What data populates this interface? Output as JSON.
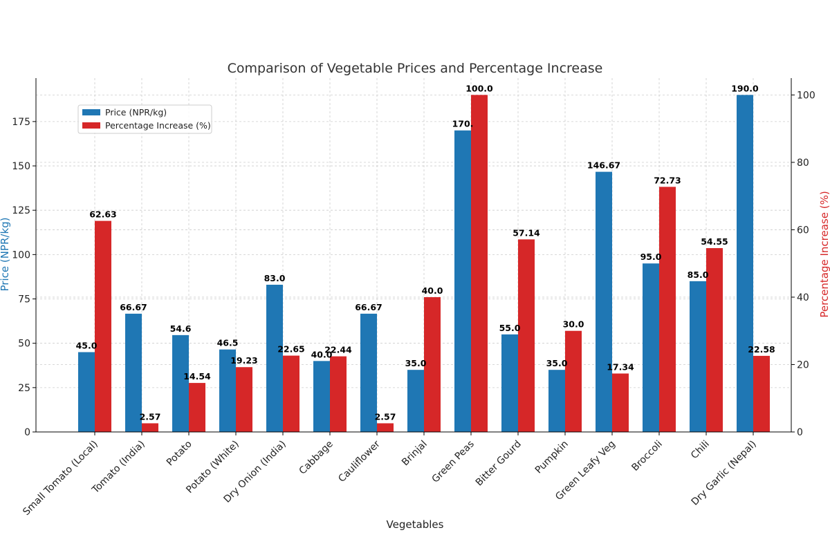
{
  "chart_data": {
    "type": "bar",
    "title": "Comparison of Vegetable Prices and Percentage Increase",
    "xlabel": "Vegetables",
    "ylabel_left": "Price (NPR/kg)",
    "ylabel_right": "Percentage Increase (%)",
    "ylim_left": [
      0,
      199.5
    ],
    "ylim_right": [
      0,
      105
    ],
    "yticks_left": [
      0,
      25,
      50,
      75,
      100,
      125,
      150,
      175
    ],
    "yticks_right": [
      0,
      20,
      40,
      60,
      80,
      100
    ],
    "grid": true,
    "legend_position": "upper-left",
    "colors": {
      "price": "#1f77b4",
      "pct": "#d62728",
      "left_axis": "#1f77b4",
      "right_axis": "#d62728"
    },
    "categories": [
      "Small Tomato (Local)",
      "Tomato (India)",
      "Potato",
      "Potato (White)",
      "Dry Onion (India)",
      "Cabbage",
      "Cauliflower",
      "Brinjal",
      "Green Peas",
      "Bitter Gourd",
      "Pumpkin",
      "Green Leafy Veg",
      "Broccoli",
      "Chili",
      "Dry Garlic (Nepal)"
    ],
    "series": [
      {
        "name": "Price (NPR/kg)",
        "axis": "left",
        "values": [
          45.0,
          66.67,
          54.6,
          46.5,
          83.0,
          40.0,
          66.67,
          35.0,
          170.0,
          55.0,
          35.0,
          146.67,
          95.0,
          85.0,
          190.0
        ],
        "labels": [
          "45.0",
          "66.67",
          "54.6",
          "46.5",
          "83.0",
          "40.0",
          "66.67",
          "35.0",
          "170.",
          "55.0",
          "35.0",
          "146.67",
          "95.0",
          "85.0",
          "190.0"
        ]
      },
      {
        "name": "Percentage Increase (%)",
        "axis": "right",
        "values": [
          62.63,
          2.57,
          14.54,
          19.23,
          22.65,
          22.44,
          2.57,
          40.0,
          100.0,
          57.14,
          30.0,
          17.34,
          72.73,
          54.55,
          22.58
        ],
        "labels": [
          "62.63",
          "2.57",
          "14.54",
          "19.23",
          "22.65",
          "22.44",
          "2.57",
          "40.0",
          "100.0",
          "57.14",
          "30.0",
          "17.34",
          "72.73",
          "54.55",
          "22.58"
        ]
      }
    ]
  }
}
